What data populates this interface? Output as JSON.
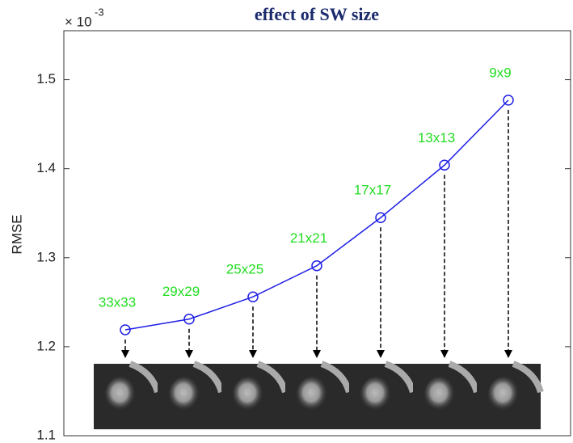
{
  "chart_data": {
    "type": "line",
    "title": "effect of SW size",
    "ylabel": "RMSE",
    "y_exponent_base": "× 10",
    "y_exponent": "-3",
    "categories": [
      "33x33",
      "29x29",
      "25x25",
      "21x21",
      "17x17",
      "13x13",
      "9x9"
    ],
    "series": [
      {
        "color": "#1f1fe6",
        "values": [
          1.219,
          1.231,
          1.256,
          1.291,
          1.345,
          1.404,
          1.477
        ]
      }
    ],
    "label_color": "#22dd22",
    "ylim": [
      1.1,
      1.555
    ],
    "yticks": [
      1.1,
      1.2,
      1.3,
      1.4,
      1.5
    ],
    "grid": false
  }
}
